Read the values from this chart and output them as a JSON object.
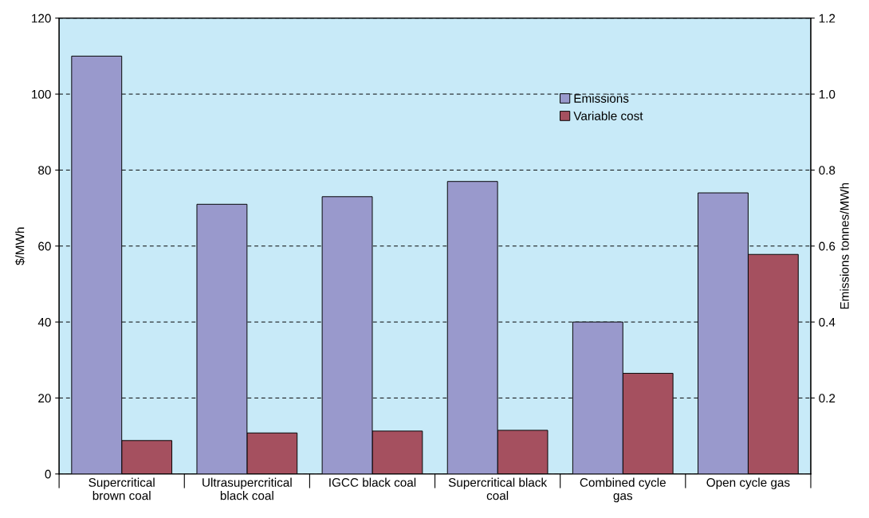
{
  "chart_data": {
    "type": "bar",
    "categories": [
      "Supercritical\nbrown coal",
      "Ultrasupercritical\nblack coal",
      "IGCC black coal",
      "Supercritical black\ncoal",
      "Combined cycle\ngas",
      "Open cycle gas"
    ],
    "series": [
      {
        "name": "Emissions",
        "color": "#9999cc",
        "axis": "y2",
        "values": [
          1.1,
          0.71,
          0.73,
          0.77,
          0.4,
          0.74
        ]
      },
      {
        "name": "Variable cost",
        "color": "#a5505f",
        "values": [
          8.8,
          10.8,
          11.3,
          11.5,
          26.5,
          57.8
        ]
      }
    ],
    "ylabel": "$/MWh",
    "y2label": "Emissions tonnes/MWh",
    "ylim": [
      0,
      120
    ],
    "yticks": [
      0,
      20,
      40,
      60,
      80,
      100,
      120
    ],
    "y2lim": [
      0,
      1.2
    ],
    "y2ticks": [
      0.2,
      0.4,
      0.6,
      0.8,
      {
        "value": 1,
        "label": "1.0"
      },
      1.2
    ],
    "grid": "y",
    "legend": "top right"
  }
}
